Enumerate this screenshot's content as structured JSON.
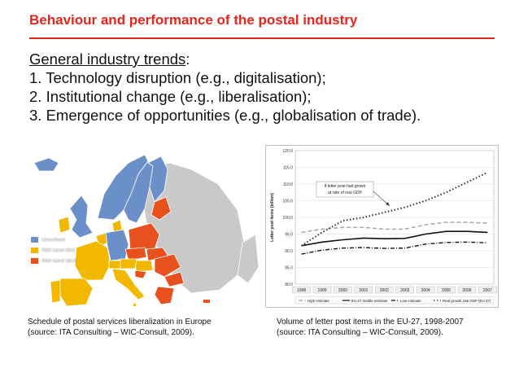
{
  "slide": {
    "title": "Behaviour and performance of the postal industry",
    "heading": "General industry trends",
    "heading_suffix": ":",
    "bullets": [
      "1. Technology disruption (e.g., digitalisation);",
      "2. Institutional change (e.g., liberalisation);",
      "3. Emergence of opportunities (e.g., globalisation of trade)."
    ],
    "title_color": "#e8251a"
  },
  "map": {
    "legend": [
      {
        "label": "Liberalised",
        "color": "#6b8fc9"
      },
      {
        "label": "FMO latest 2011",
        "color": "#f2b800"
      },
      {
        "label": "FMO latest 2013",
        "color": "#e8501e"
      }
    ],
    "caption_lines": [
      "Schedule of postal services liberalization in Europe",
      "(source: ITA Consulting – WIC-Consult, 2009)."
    ]
  },
  "chart_data": {
    "type": "line",
    "ylabel": "Letter post items (billion)",
    "ylim": [
      80,
      120
    ],
    "yticks": [
      "80.0",
      "85.0",
      "90.0",
      "95.0",
      "100.0",
      "105.0",
      "110.0",
      "115.0",
      "120.0"
    ],
    "categories": [
      "1998",
      "1999",
      "2000",
      "2001",
      "2002",
      "2003",
      "2004",
      "2005",
      "2006",
      "2007"
    ],
    "series": [
      {
        "name": "High estimate",
        "color": "#aaaaaa",
        "dash": "long",
        "values": [
          95.5,
          96.5,
          97.0,
          97.0,
          96.5,
          96.5,
          97.8,
          98.5,
          98.5,
          98.3
        ]
      },
      {
        "name": "EU-27 middle estimate",
        "color": "#111111",
        "dash": "solid",
        "values": [
          91.5,
          92.6,
          93.3,
          93.8,
          93.6,
          93.7,
          95.0,
          95.8,
          95.8,
          95.5
        ]
      },
      {
        "name": "Low estimate",
        "color": "#111111",
        "dash": "long-dot",
        "values": [
          89.0,
          90.2,
          90.8,
          91.0,
          90.7,
          90.8,
          92.0,
          92.5,
          92.6,
          92.4
        ]
      },
      {
        "name": "Real growth rate GDP (EU-27)",
        "color": "#333333",
        "dash": "dot",
        "values": [
          91.5,
          95.5,
          99.0,
          100.0,
          101.5,
          103.0,
          105.0,
          107.5,
          110.5,
          113.5
        ]
      }
    ],
    "annotation": "If letter post had grown at rate of real GDP",
    "grid": true,
    "legend_position": "bottom",
    "caption_lines": [
      "Volume of letter post items in the EU-27, 1998-2007",
      "(source: ITA Consulting – WIC-Consult, 2009)."
    ]
  }
}
